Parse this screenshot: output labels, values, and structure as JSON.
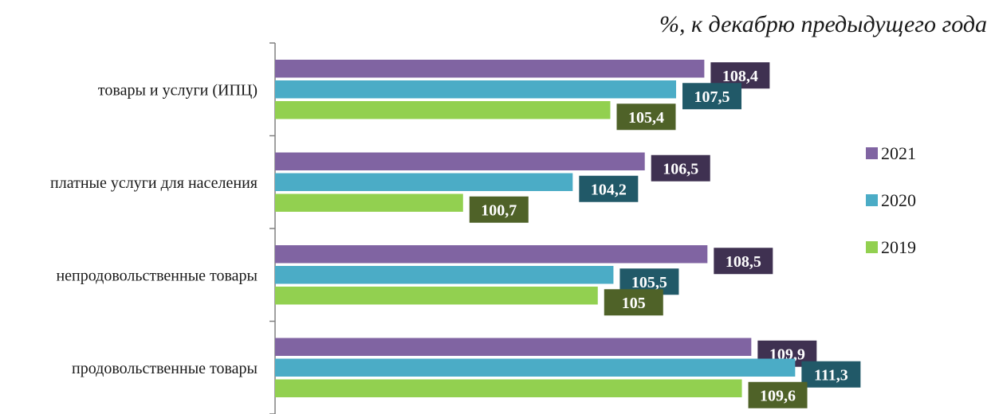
{
  "chart_data": {
    "type": "bar",
    "orientation": "horizontal",
    "subtitle": "%, к декабрю предыдущего года",
    "categories": [
      "товары и услуги (ИПЦ)",
      "платные услуги для населения",
      "непродовольственные товары",
      "продовольственные товары"
    ],
    "series": [
      {
        "name": "2021",
        "color": "#8064a2",
        "label_bg": "#3f3151",
        "values": [
          108.4,
          106.5,
          108.5,
          109.9
        ],
        "labels": [
          "108,4",
          "106,5",
          "108,5",
          "109,9"
        ]
      },
      {
        "name": "2020",
        "color": "#4bacc6",
        "label_bg": "#215968",
        "values": [
          107.5,
          104.2,
          105.5,
          111.3
        ],
        "labels": [
          "107,5",
          "104,2",
          "105,5",
          "111,3"
        ]
      },
      {
        "name": "2019",
        "color": "#92d050",
        "label_bg": "#4f6228",
        "values": [
          105.4,
          100.7,
          105.0,
          109.6
        ],
        "labels": [
          "105,4",
          "100,7",
          "105",
          "109,6"
        ]
      }
    ],
    "xlim": [
      94.7,
      111.8
    ],
    "grid": false,
    "legend_position": "right"
  }
}
